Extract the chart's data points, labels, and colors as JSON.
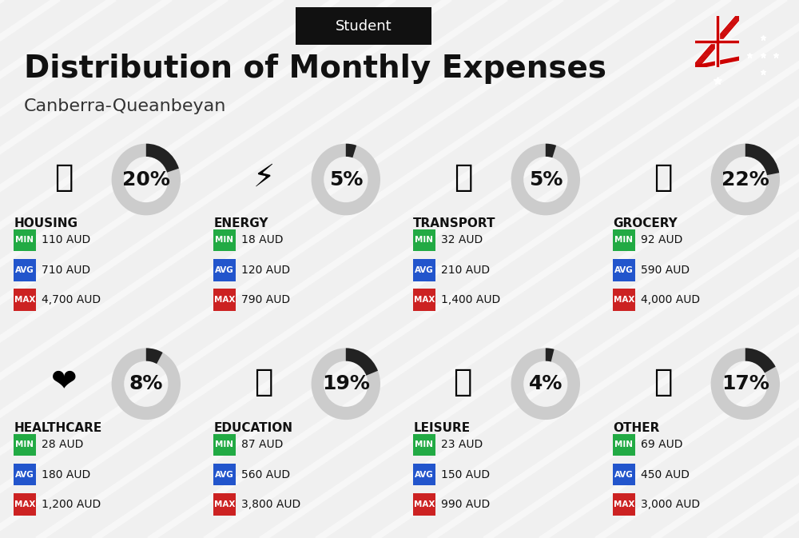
{
  "title": "Distribution of Monthly Expenses",
  "subtitle": "Canberra-Queanbeyan",
  "label": "Student",
  "bg_color": "#f0f0f0",
  "categories": [
    {
      "name": "HOUSING",
      "pct": 20,
      "min": "110 AUD",
      "avg": "710 AUD",
      "max": "4,700 AUD",
      "row": 0,
      "col": 0
    },
    {
      "name": "ENERGY",
      "pct": 5,
      "min": "18 AUD",
      "avg": "120 AUD",
      "max": "790 AUD",
      "row": 0,
      "col": 1
    },
    {
      "name": "TRANSPORT",
      "pct": 5,
      "min": "32 AUD",
      "avg": "210 AUD",
      "max": "1,400 AUD",
      "row": 0,
      "col": 2
    },
    {
      "name": "GROCERY",
      "pct": 22,
      "min": "92 AUD",
      "avg": "590 AUD",
      "max": "4,000 AUD",
      "row": 0,
      "col": 3
    },
    {
      "name": "HEALTHCARE",
      "pct": 8,
      "min": "28 AUD",
      "avg": "180 AUD",
      "max": "1,200 AUD",
      "row": 1,
      "col": 0
    },
    {
      "name": "EDUCATION",
      "pct": 19,
      "min": "87 AUD",
      "avg": "560 AUD",
      "max": "3,800 AUD",
      "row": 1,
      "col": 1
    },
    {
      "name": "LEISURE",
      "pct": 4,
      "min": "23 AUD",
      "avg": "150 AUD",
      "max": "990 AUD",
      "row": 1,
      "col": 2
    },
    {
      "name": "OTHER",
      "pct": 17,
      "min": "69 AUD",
      "avg": "450 AUD",
      "max": "3,000 AUD",
      "row": 1,
      "col": 3
    }
  ],
  "color_min": "#22aa44",
  "color_avg": "#2255cc",
  "color_max": "#cc2222",
  "color_text": "#ffffff",
  "ring_color": "#222222",
  "ring_bg": "#cccccc",
  "title_fontsize": 28,
  "subtitle_fontsize": 16,
  "label_fontsize": 13,
  "cat_fontsize": 11,
  "val_fontsize": 10,
  "pct_fontsize": 18
}
